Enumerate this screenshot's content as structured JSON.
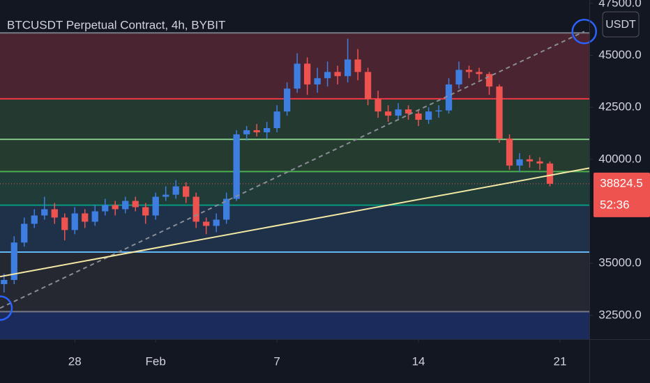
{
  "chart_data": {
    "type": "candlestick",
    "title": "BTCUSDT Perpetual Contract, 4h, BYBIT",
    "currency": "USDT",
    "x": [
      -3.5,
      -3,
      -2.5,
      -2,
      -1.5,
      -1,
      -0.5,
      0,
      0.5,
      1,
      1.5,
      2,
      2.5,
      3,
      3.5,
      4,
      4.5,
      5,
      5.5,
      6,
      6.5,
      7,
      7.5,
      8,
      8.5,
      9,
      9.5,
      10,
      10.5,
      11,
      11.5,
      12,
      12.5,
      13,
      13.5,
      14,
      14.5,
      15,
      15.5,
      16,
      16.5,
      17,
      17.5,
      18,
      18.5,
      19,
      19.5,
      20,
      20.5,
      21,
      21.5,
      22,
      22.5,
      23,
      23.5
    ],
    "open": [
      34000,
      34200,
      36000,
      36900,
      37300,
      37600,
      37200,
      36600,
      37400,
      37000,
      37500,
      37800,
      37600,
      38000,
      37700,
      37300,
      38200,
      38300,
      38700,
      38200,
      37000,
      36800,
      37100,
      38100,
      41200,
      41400,
      41300,
      41500,
      42300,
      43400,
      44600,
      43600,
      43900,
      44200,
      44000,
      44800,
      44200,
      42900,
      42300,
      42100,
      42400,
      42200,
      41900,
      42300,
      42350,
      43600,
      44300,
      44200,
      44100,
      43500,
      41000,
      39700,
      40000,
      39900,
      39800
    ],
    "high": [
      34500,
      36300,
      37200,
      37600,
      38200,
      37900,
      37400,
      37700,
      37600,
      37800,
      38100,
      38000,
      38200,
      38200,
      37900,
      38400,
      38700,
      39000,
      38900,
      38400,
      37200,
      37400,
      38400,
      41400,
      41600,
      41700,
      41800,
      42600,
      43700,
      45100,
      44900,
      44400,
      44700,
      44500,
      45800,
      45300,
      44400,
      43300,
      42600,
      42700,
      42600,
      42400,
      42500,
      42600,
      43900,
      44700,
      44500,
      44400,
      44200,
      43600,
      41200,
      40300,
      40200,
      40100,
      39900
    ],
    "low": [
      33600,
      34000,
      35800,
      36700,
      37100,
      36900,
      36100,
      36400,
      36700,
      36800,
      37300,
      37300,
      37400,
      37500,
      36900,
      37100,
      38000,
      38100,
      37900,
      36700,
      36400,
      36500,
      36900,
      38000,
      40900,
      41100,
      41000,
      41300,
      42100,
      43200,
      43100,
      43200,
      43500,
      43600,
      43700,
      43800,
      42600,
      42000,
      41800,
      41900,
      41900,
      41600,
      41700,
      42000,
      42200,
      43400,
      43900,
      43800,
      43100,
      40800,
      39500,
      39400,
      39600,
      39500,
      38700
    ],
    "close": [
      34200,
      36000,
      36900,
      37300,
      37600,
      37200,
      36600,
      37400,
      37000,
      37500,
      37800,
      37600,
      38000,
      37700,
      37300,
      38200,
      38300,
      38700,
      38200,
      37000,
      36800,
      37100,
      38100,
      41200,
      41400,
      41300,
      41500,
      42300,
      43400,
      44600,
      43600,
      43900,
      44200,
      44000,
      44800,
      44200,
      42900,
      42300,
      42100,
      42400,
      42200,
      41900,
      42300,
      42350,
      43600,
      44300,
      44200,
      44100,
      43500,
      41000,
      39700,
      40000,
      39900,
      39800,
      38824.5
    ],
    "up_color": "#3d7ee0",
    "down_color": "#ef5350",
    "xlim": [
      -3.7,
      25.45
    ],
    "xticks": [
      {
        "value": 0,
        "label": "28"
      },
      {
        "value": 4,
        "label": "Feb"
      },
      {
        "value": 10,
        "label": "7"
      },
      {
        "value": 17,
        "label": "14"
      },
      {
        "value": 24,
        "label": "21"
      }
    ],
    "ylim": [
      31355,
      47660
    ],
    "yticks": [
      {
        "value": 32500,
        "label": "32500.0"
      },
      {
        "value": 35000,
        "label": "35000.0"
      },
      {
        "value": 40000,
        "label": "40000.0"
      },
      {
        "value": 42500,
        "label": "42500.0"
      },
      {
        "value": 45000,
        "label": "45000.0"
      },
      {
        "value": 47500,
        "label": "47500.0"
      }
    ],
    "levels": [
      {
        "value": 46077,
        "color": "#787b86",
        "fill": "#4a2430"
      },
      {
        "value": 42912,
        "color": "#f23645",
        "fill": "#243a30"
      },
      {
        "value": 40960,
        "color": "#81c784",
        "fill": "#253b2f"
      },
      {
        "value": 39411,
        "color": "#4caf50",
        "fill": "#1f3c39"
      },
      {
        "value": 37795,
        "color": "#089981",
        "fill": "#1e3148"
      },
      {
        "value": 35539,
        "color": "#64b5f6",
        "fill": "#252830"
      },
      {
        "value": 32677,
        "color": "#787b86",
        "fill": "#1b2b5c"
      }
    ],
    "trend_lines": [
      {
        "x": [
          -3.7,
          25.2
        ],
        "y": [
          32845,
          46145
        ],
        "color": "#8a8d96",
        "dashed": true,
        "handles": true
      },
      {
        "x": [
          -3.7,
          25.45
        ],
        "y": [
          34360,
          39580
        ],
        "color": "#f3e8a4",
        "dashed": false,
        "handles": false
      }
    ],
    "last_price": {
      "value": 38824.5,
      "label": "38824.5"
    },
    "countdown": "52:36"
  }
}
